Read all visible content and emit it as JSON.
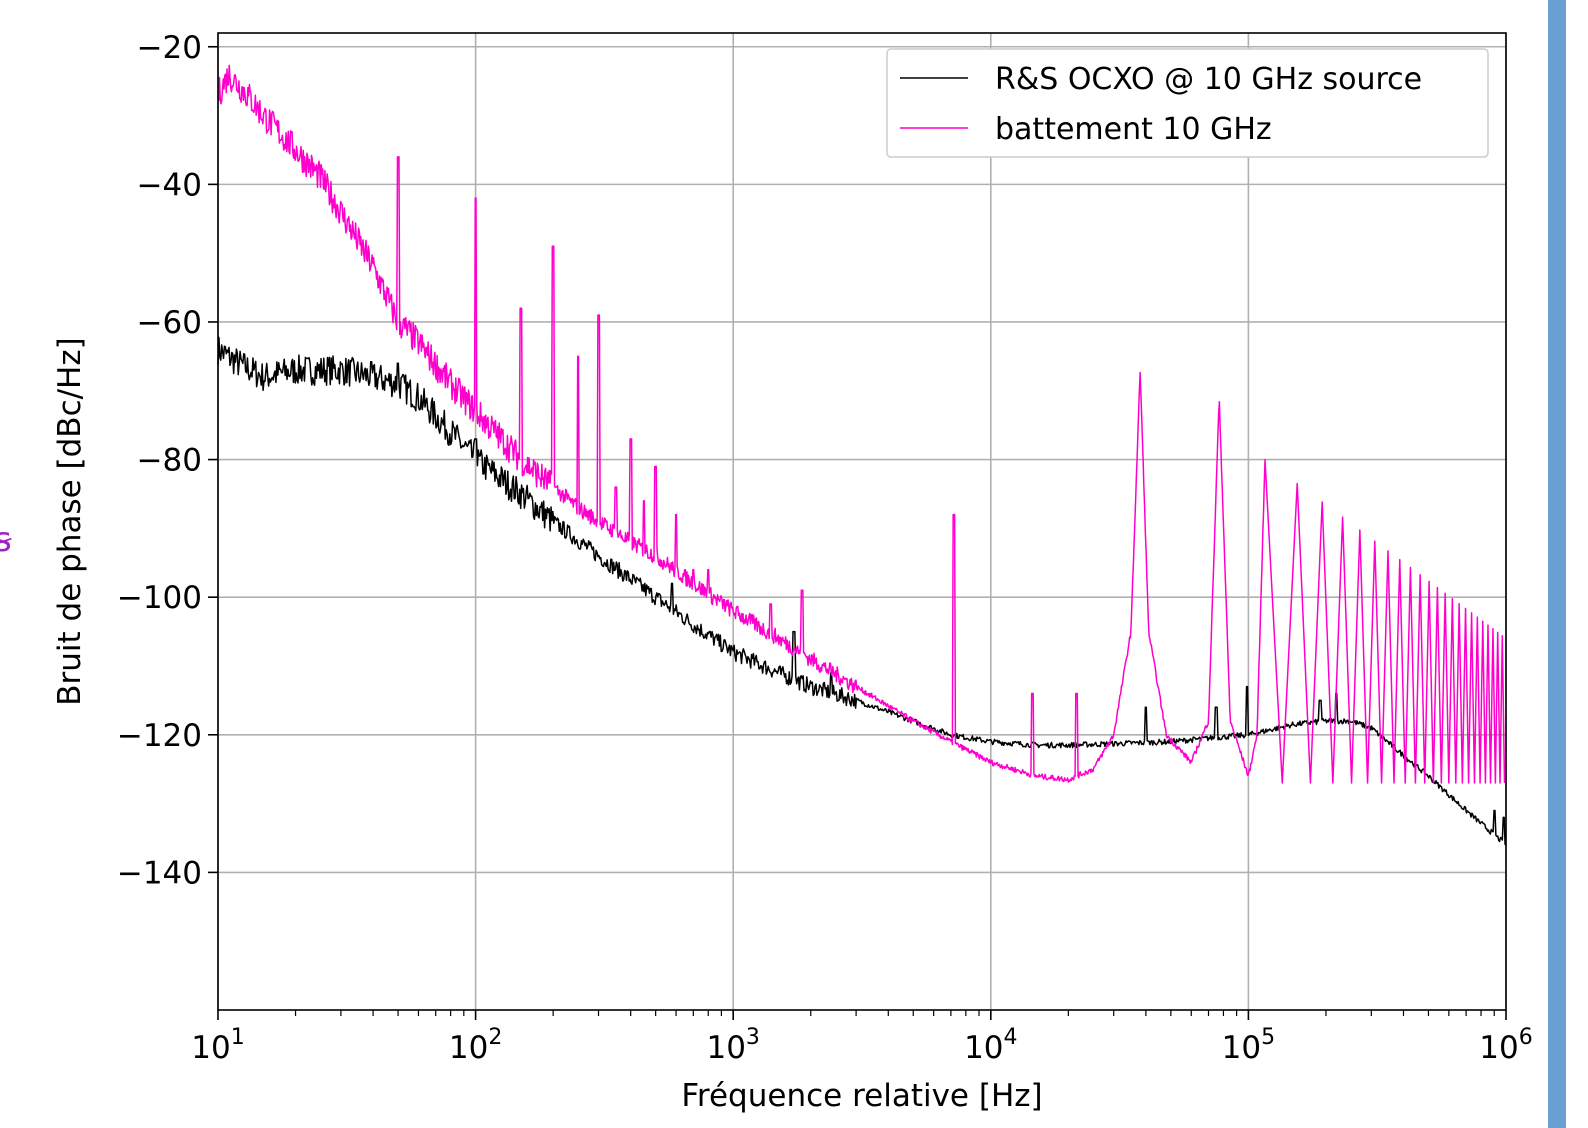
{
  "chart_data": {
    "type": "line",
    "xlabel": "Fréquence relative [Hz]",
    "ylabel": "Bruit de phase [dBc/Hz]",
    "xscale": "log",
    "xlim": [
      10,
      1000000
    ],
    "ylim": [
      -160,
      -18
    ],
    "x_ticks": [
      {
        "base": "10",
        "exp": "1"
      },
      {
        "base": "10",
        "exp": "2"
      },
      {
        "base": "10",
        "exp": "3"
      },
      {
        "base": "10",
        "exp": "4"
      },
      {
        "base": "10",
        "exp": "5"
      },
      {
        "base": "10",
        "exp": "6"
      }
    ],
    "y_tick_values": [
      -20,
      -40,
      -60,
      -80,
      -100,
      -120,
      -140
    ],
    "y_ticks": [
      "−20",
      "−40",
      "−60",
      "−80",
      "−100",
      "−120",
      "−140"
    ],
    "grid": true,
    "legend_position": "top-right",
    "series": [
      {
        "name": "R&S OCXO @ 10 GHz source",
        "color": "#000000",
        "points": [
          [
            10,
            -64
          ],
          [
            12,
            -66
          ],
          [
            15,
            -68
          ],
          [
            20,
            -67
          ],
          [
            30,
            -67
          ],
          [
            40,
            -68
          ],
          [
            50,
            -69
          ],
          [
            60,
            -71
          ],
          [
            80,
            -76
          ],
          [
            100,
            -80
          ],
          [
            150,
            -85
          ],
          [
            200,
            -89
          ],
          [
            300,
            -94
          ],
          [
            500,
            -100
          ],
          [
            700,
            -104
          ],
          [
            1000,
            -108
          ],
          [
            1500,
            -111
          ],
          [
            2000,
            -113
          ],
          [
            3000,
            -115
          ],
          [
            5000,
            -118
          ],
          [
            7000,
            -120
          ],
          [
            10000,
            -121
          ],
          [
            15000,
            -121.5
          ],
          [
            20000,
            -121.5
          ],
          [
            30000,
            -121.3
          ],
          [
            50000,
            -121
          ],
          [
            70000,
            -120.5
          ],
          [
            100000,
            -120
          ],
          [
            150000,
            -118.5
          ],
          [
            200000,
            -118
          ],
          [
            250000,
            -118
          ],
          [
            300000,
            -119
          ],
          [
            400000,
            -123
          ],
          [
            500000,
            -126
          ],
          [
            700000,
            -131
          ],
          [
            1000000,
            -136
          ]
        ],
        "spurs": [
          [
            50,
            -66
          ],
          [
            100,
            -77
          ],
          [
            580,
            -98
          ],
          [
            1720,
            -105
          ],
          [
            2400,
            -111
          ],
          [
            40000,
            -116
          ],
          [
            75000,
            -116
          ],
          [
            99000,
            -113
          ],
          [
            190000,
            -115
          ],
          [
            220000,
            -114
          ],
          [
            900000,
            -131
          ],
          [
            980000,
            -132
          ]
        ]
      },
      {
        "name": "battement 10 GHz",
        "color": "#ff00cc",
        "points": [
          [
            10,
            -27
          ],
          [
            11,
            -24
          ],
          [
            13,
            -27
          ],
          [
            15,
            -30
          ],
          [
            20,
            -35
          ],
          [
            25,
            -39
          ],
          [
            30,
            -44
          ],
          [
            40,
            -52
          ],
          [
            50,
            -60
          ],
          [
            60,
            -63
          ],
          [
            80,
            -69
          ],
          [
            100,
            -73
          ],
          [
            150,
            -80
          ],
          [
            200,
            -84
          ],
          [
            250,
            -87
          ],
          [
            300,
            -89
          ],
          [
            400,
            -92
          ],
          [
            500,
            -94
          ],
          [
            700,
            -98
          ],
          [
            1000,
            -102
          ],
          [
            1500,
            -106
          ],
          [
            2000,
            -109
          ],
          [
            3000,
            -113
          ],
          [
            5000,
            -118
          ],
          [
            7000,
            -121
          ],
          [
            10000,
            -124
          ],
          [
            15000,
            -126
          ],
          [
            20000,
            -126.5
          ],
          [
            25000,
            -125
          ],
          [
            30000,
            -120
          ],
          [
            35000,
            -105
          ],
          [
            38000,
            -67
          ],
          [
            41000,
            -105
          ],
          [
            48000,
            -120
          ],
          [
            60000,
            -124
          ],
          [
            70000,
            -118
          ],
          [
            77000,
            -71
          ],
          [
            85000,
            -118
          ],
          [
            100000,
            -126
          ],
          [
            108000,
            -120
          ],
          [
            116000,
            -80
          ]
        ],
        "comb": {
          "start": 116000,
          "spacing": 38700,
          "end": 1000000,
          "floor": -127,
          "peak_start": -80,
          "peak_end": -106
        },
        "spurs": [
          [
            50,
            -36
          ],
          [
            100,
            -42
          ],
          [
            150,
            -58
          ],
          [
            200,
            -49
          ],
          [
            250,
            -65
          ],
          [
            300,
            -59
          ],
          [
            350,
            -84
          ],
          [
            400,
            -77
          ],
          [
            450,
            -86
          ],
          [
            500,
            -81
          ],
          [
            600,
            -88
          ],
          [
            700,
            -96
          ],
          [
            800,
            -96
          ],
          [
            1400,
            -101
          ],
          [
            1850,
            -99
          ],
          [
            7200,
            -88
          ],
          [
            14500,
            -114
          ],
          [
            21500,
            -114
          ]
        ]
      }
    ]
  }
}
